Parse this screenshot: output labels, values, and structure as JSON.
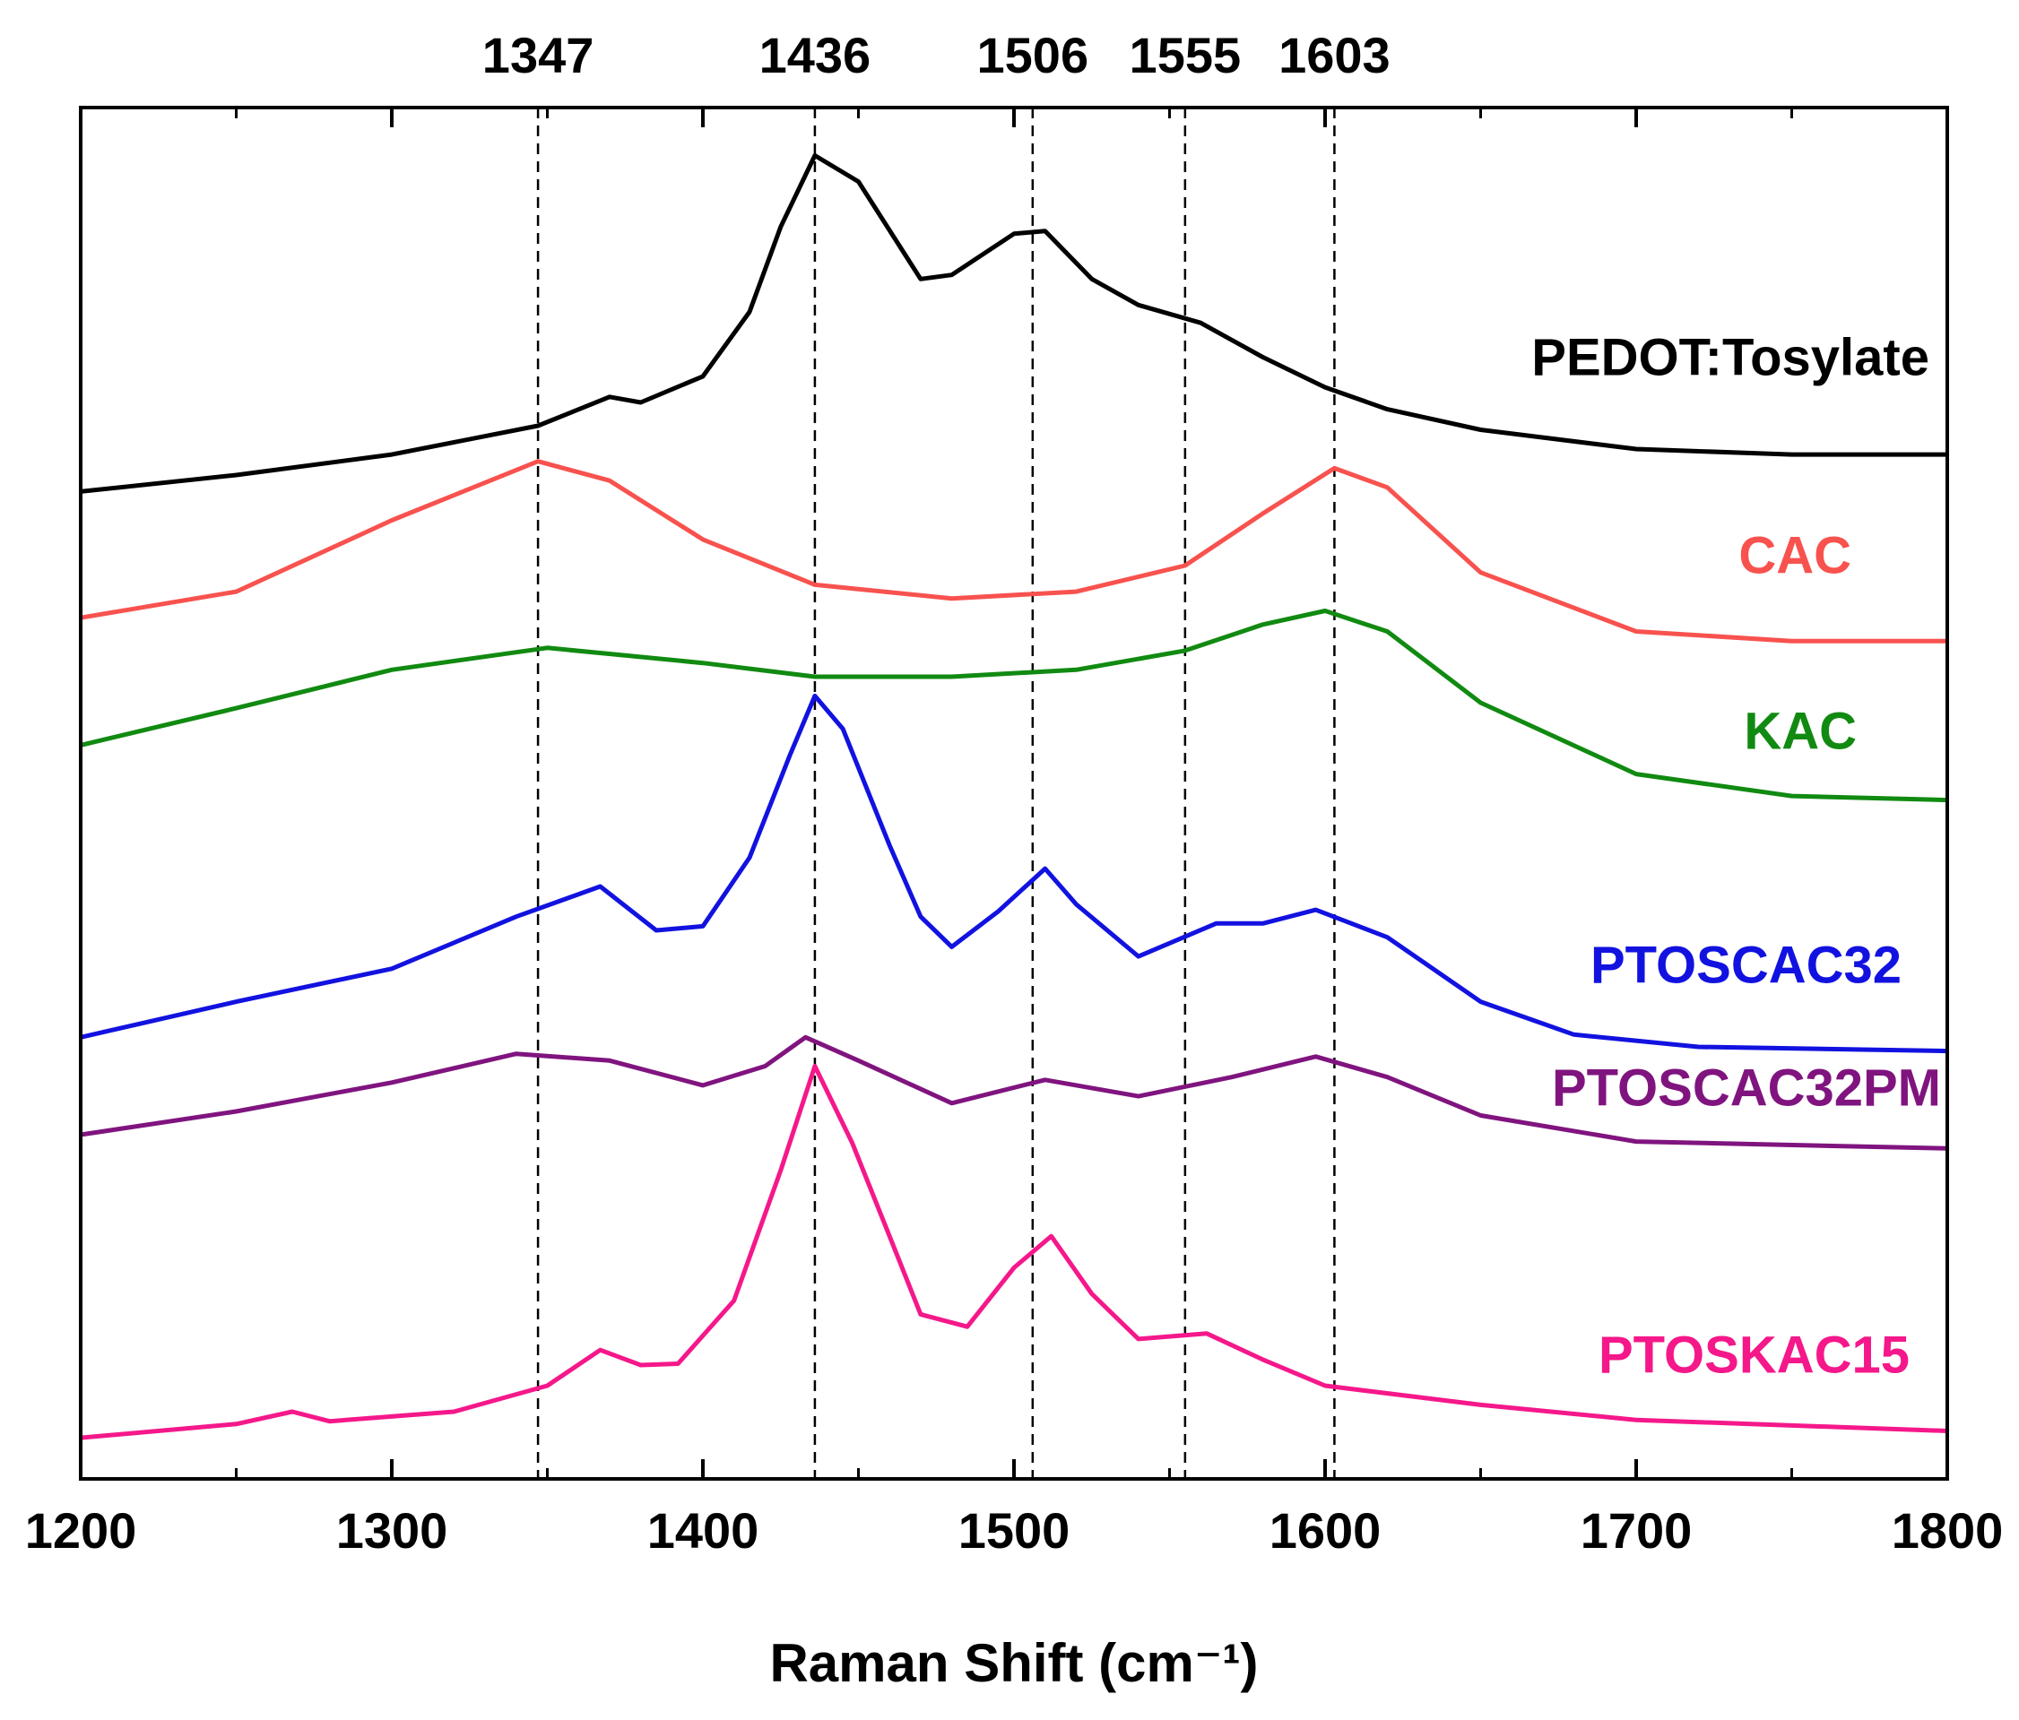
{
  "chart_data": {
    "type": "line",
    "x_label": "Raman Shift (cm⁻¹)",
    "xlim": [
      1200,
      1800
    ],
    "xticks": [
      1200,
      1300,
      1400,
      1500,
      1600,
      1700,
      1800
    ],
    "ylim": [
      0,
      100
    ],
    "reference_lines": [
      1347,
      1436,
      1506,
      1555,
      1603
    ],
    "series": [
      {
        "name": "PEDOT:Tosylate",
        "color": "#000000",
        "x": [
          1200,
          1250,
          1300,
          1347,
          1370,
          1380,
          1400,
          1415,
          1425,
          1436,
          1450,
          1470,
          1480,
          1500,
          1510,
          1525,
          1540,
          1560,
          1580,
          1600,
          1620,
          1650,
          1700,
          1750,
          1800
        ],
        "values": [
          72.0,
          73.2,
          74.7,
          76.8,
          78.9,
          78.5,
          80.4,
          85.1,
          91.3,
          96.5,
          94.6,
          87.5,
          87.8,
          90.8,
          91.0,
          87.5,
          85.6,
          84.3,
          81.8,
          79.6,
          78.0,
          76.5,
          75.1,
          74.7,
          74.7
        ]
      },
      {
        "name": "CAC",
        "color": "#f8524f",
        "x": [
          1200,
          1250,
          1300,
          1347,
          1370,
          1400,
          1436,
          1480,
          1520,
          1555,
          1580,
          1603,
          1620,
          1650,
          1700,
          1750,
          1800
        ],
        "values": [
          62.8,
          64.7,
          69.9,
          74.2,
          72.8,
          68.5,
          65.2,
          64.2,
          64.7,
          66.6,
          70.4,
          73.7,
          72.3,
          66.1,
          61.8,
          61.1,
          61.1
        ]
      },
      {
        "name": "KAC",
        "color": "#118a11",
        "x": [
          1200,
          1250,
          1300,
          1350,
          1400,
          1436,
          1480,
          1520,
          1555,
          1580,
          1600,
          1620,
          1650,
          1700,
          1750,
          1800
        ],
        "values": [
          53.5,
          56.2,
          59.0,
          60.6,
          59.5,
          58.5,
          58.5,
          59.0,
          60.4,
          62.3,
          63.3,
          61.8,
          56.6,
          51.4,
          49.8,
          49.5
        ]
      },
      {
        "name": "PTOSCAC32",
        "color": "#1212e0",
        "x": [
          1200,
          1250,
          1300,
          1340,
          1367,
          1385,
          1400,
          1415,
          1428,
          1436,
          1445,
          1460,
          1470,
          1480,
          1495,
          1510,
          1520,
          1540,
          1565,
          1580,
          1597,
          1620,
          1650,
          1680,
          1720,
          1800
        ],
        "values": [
          32.2,
          34.8,
          37.2,
          41.0,
          43.2,
          40.0,
          40.3,
          45.3,
          52.8,
          57.1,
          54.7,
          46.2,
          41.0,
          38.8,
          41.4,
          44.5,
          41.9,
          38.1,
          40.5,
          40.5,
          41.5,
          39.5,
          34.8,
          32.4,
          31.5,
          31.2
        ]
      },
      {
        "name": "PTOSCAC32PM",
        "color": "#80147f",
        "x": [
          1200,
          1250,
          1300,
          1340,
          1370,
          1400,
          1420,
          1433,
          1450,
          1480,
          1510,
          1540,
          1570,
          1597,
          1620,
          1650,
          1700,
          1800
        ],
        "values": [
          25.1,
          26.8,
          28.9,
          31.0,
          30.5,
          28.7,
          30.1,
          32.2,
          30.5,
          27.4,
          29.1,
          27.9,
          29.3,
          30.8,
          29.3,
          26.5,
          24.6,
          24.1
        ]
      },
      {
        "name": "PTOSKAC15",
        "color": "#f5188a",
        "x": [
          1200,
          1250,
          1268,
          1280,
          1320,
          1350,
          1367,
          1380,
          1392,
          1410,
          1425,
          1436,
          1448,
          1460,
          1470,
          1485,
          1500,
          1512,
          1525,
          1540,
          1562,
          1580,
          1600,
          1650,
          1700,
          1800
        ],
        "values": [
          3.0,
          4.0,
          4.9,
          4.2,
          4.9,
          6.8,
          9.4,
          8.3,
          8.4,
          13.0,
          22.5,
          30.1,
          24.5,
          17.7,
          12.0,
          11.1,
          15.4,
          17.7,
          13.5,
          10.2,
          10.6,
          8.7,
          6.8,
          5.4,
          4.3,
          3.5
        ]
      }
    ]
  }
}
